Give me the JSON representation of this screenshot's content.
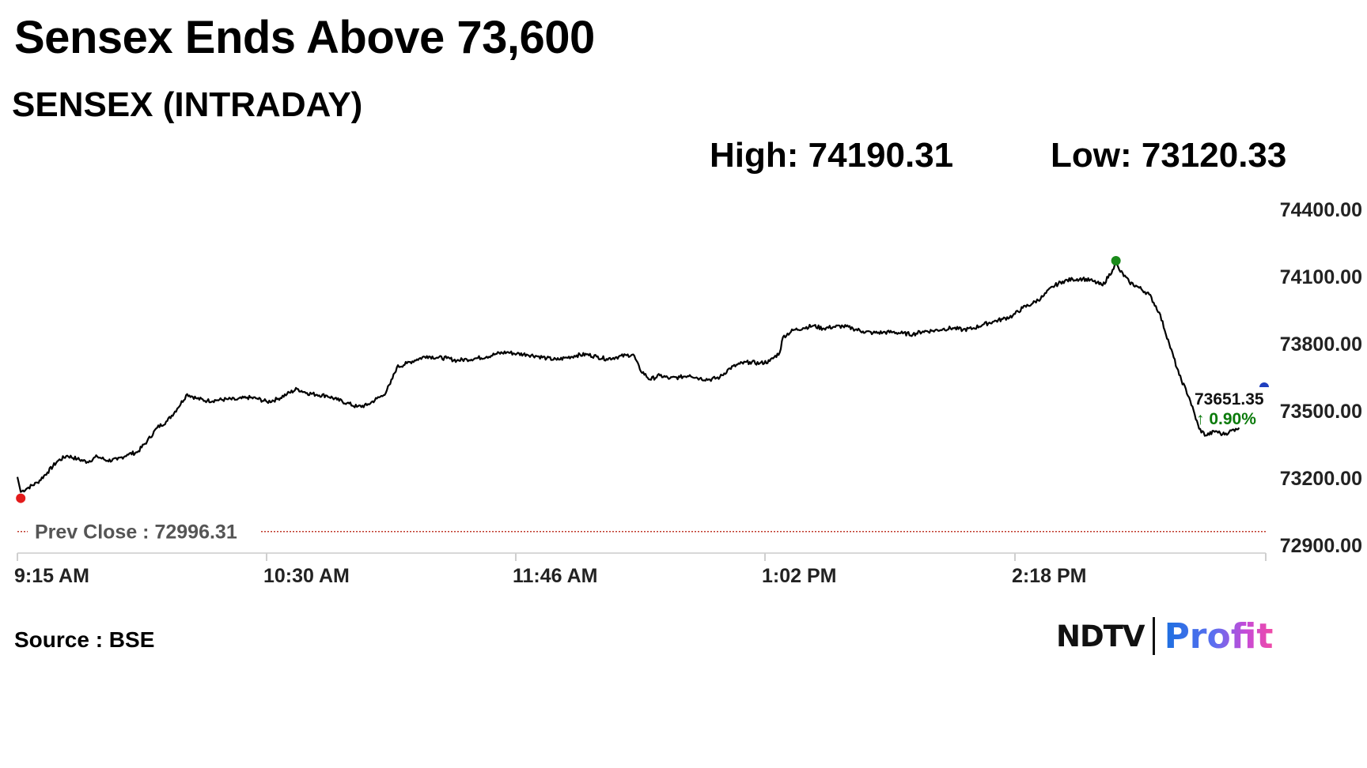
{
  "headline": "Sensex Ends Above 73,600",
  "subtitle": "SENSEX (INTRADAY)",
  "stats": {
    "high": "High: 74190.31",
    "low": "Low: 73120.33"
  },
  "source": "Source : BSE",
  "logo": {
    "ndtv": "NDTV",
    "profit": "Profit"
  },
  "chart_data": {
    "type": "line",
    "title": "SENSEX (INTRADAY)",
    "xlabel": "",
    "ylabel": "",
    "x_ticks": [
      "9:15 AM",
      "10:30 AM",
      "11:46 AM",
      "1:02 PM",
      "2:18 PM"
    ],
    "y_ticks": [
      "74400.00",
      "74100.00",
      "73800.00",
      "73500.00",
      "73200.00",
      "72900.00"
    ],
    "ylim": [
      72900,
      74400
    ],
    "x_minutes": [
      0,
      375
    ],
    "grid": false,
    "reference_line": {
      "label": "Prev Close : 72996.31",
      "value": 72996.31,
      "color": "#c0392b"
    },
    "last_value_label": "73651.35",
    "change_label": "↑ 0.90%",
    "change_color": "#0a7a0a",
    "line_color": "#000000",
    "low_marker_color": "#e31b1b",
    "high_marker_color": "#1a8a1a",
    "current_marker_color": "#1f3fbf",
    "current_marker_value": 73651.35,
    "points": [
      [
        0,
        73205
      ],
      [
        1,
        73138
      ],
      [
        3,
        73155
      ],
      [
        6,
        73180
      ],
      [
        9,
        73225
      ],
      [
        12,
        73275
      ],
      [
        15,
        73300
      ],
      [
        18,
        73285
      ],
      [
        21,
        73272
      ],
      [
        24,
        73296
      ],
      [
        27,
        73278
      ],
      [
        30,
        73282
      ],
      [
        33,
        73305
      ],
      [
        36,
        73315
      ],
      [
        39,
        73365
      ],
      [
        42,
        73425
      ],
      [
        45,
        73455
      ],
      [
        48,
        73510
      ],
      [
        51,
        73575
      ],
      [
        54,
        73555
      ],
      [
        57,
        73545
      ],
      [
        60,
        73548
      ],
      [
        63,
        73552
      ],
      [
        66,
        73550
      ],
      [
        69,
        73560
      ],
      [
        72,
        73555
      ],
      [
        75,
        73540
      ],
      [
        78,
        73552
      ],
      [
        81,
        73575
      ],
      [
        84,
        73598
      ],
      [
        87,
        73580
      ],
      [
        90,
        73572
      ],
      [
        93,
        73568
      ],
      [
        96,
        73550
      ],
      [
        99,
        73535
      ],
      [
        102,
        73518
      ],
      [
        105,
        73525
      ],
      [
        108,
        73555
      ],
      [
        110,
        73570
      ],
      [
        112,
        73620
      ],
      [
        114,
        73695
      ],
      [
        117,
        73712
      ],
      [
        120,
        73730
      ],
      [
        123,
        73745
      ],
      [
        126,
        73738
      ],
      [
        129,
        73735
      ],
      [
        132,
        73725
      ],
      [
        135,
        73730
      ],
      [
        138,
        73735
      ],
      [
        141,
        73742
      ],
      [
        144,
        73755
      ],
      [
        147,
        73762
      ],
      [
        150,
        73755
      ],
      [
        153,
        73752
      ],
      [
        156,
        73745
      ],
      [
        159,
        73735
      ],
      [
        162,
        73728
      ],
      [
        165,
        73738
      ],
      [
        168,
        73748
      ],
      [
        171,
        73752
      ],
      [
        174,
        73742
      ],
      [
        177,
        73732
      ],
      [
        180,
        73740
      ],
      [
        183,
        73748
      ],
      [
        185,
        73752
      ],
      [
        187,
        73685
      ],
      [
        190,
        73640
      ],
      [
        193,
        73658
      ],
      [
        196,
        73645
      ],
      [
        199,
        73650
      ],
      [
        202,
        73660
      ],
      [
        205,
        73645
      ],
      [
        208,
        73640
      ],
      [
        211,
        73650
      ],
      [
        214,
        73690
      ],
      [
        217,
        73710
      ],
      [
        220,
        73718
      ],
      [
        223,
        73712
      ],
      [
        226,
        73722
      ],
      [
        229,
        73760
      ],
      [
        230,
        73830
      ],
      [
        233,
        73860
      ],
      [
        236,
        73870
      ],
      [
        239,
        73880
      ],
      [
        242,
        73868
      ],
      [
        245,
        73875
      ],
      [
        248,
        73878
      ],
      [
        251,
        73868
      ],
      [
        254,
        73855
      ],
      [
        257,
        73848
      ],
      [
        260,
        73850
      ],
      [
        263,
        73852
      ],
      [
        266,
        73846
      ],
      [
        269,
        73842
      ],
      [
        272,
        73855
      ],
      [
        275,
        73858
      ],
      [
        278,
        73865
      ],
      [
        281,
        73870
      ],
      [
        284,
        73862
      ],
      [
        287,
        73868
      ],
      [
        290,
        73885
      ],
      [
        293,
        73898
      ],
      [
        296,
        73910
      ],
      [
        299,
        73925
      ],
      [
        302,
        73960
      ],
      [
        305,
        73980
      ],
      [
        308,
        74010
      ],
      [
        311,
        74055
      ],
      [
        314,
        74078
      ],
      [
        317,
        74088
      ],
      [
        320,
        74090
      ],
      [
        323,
        74080
      ],
      [
        326,
        74060
      ],
      [
        329,
        74130
      ],
      [
        330,
        74160
      ],
      [
        331,
        74130
      ],
      [
        334,
        74075
      ],
      [
        337,
        74050
      ],
      [
        340,
        74020
      ],
      [
        343,
        73940
      ],
      [
        346,
        73800
      ],
      [
        349,
        73660
      ],
      [
        352,
        73560
      ],
      [
        355,
        73420
      ],
      [
        357,
        73390
      ],
      [
        360,
        73410
      ],
      [
        362,
        73395
      ],
      [
        364,
        73405
      ],
      [
        366,
        73420
      ],
      [
        367,
        73425
      ]
    ]
  }
}
